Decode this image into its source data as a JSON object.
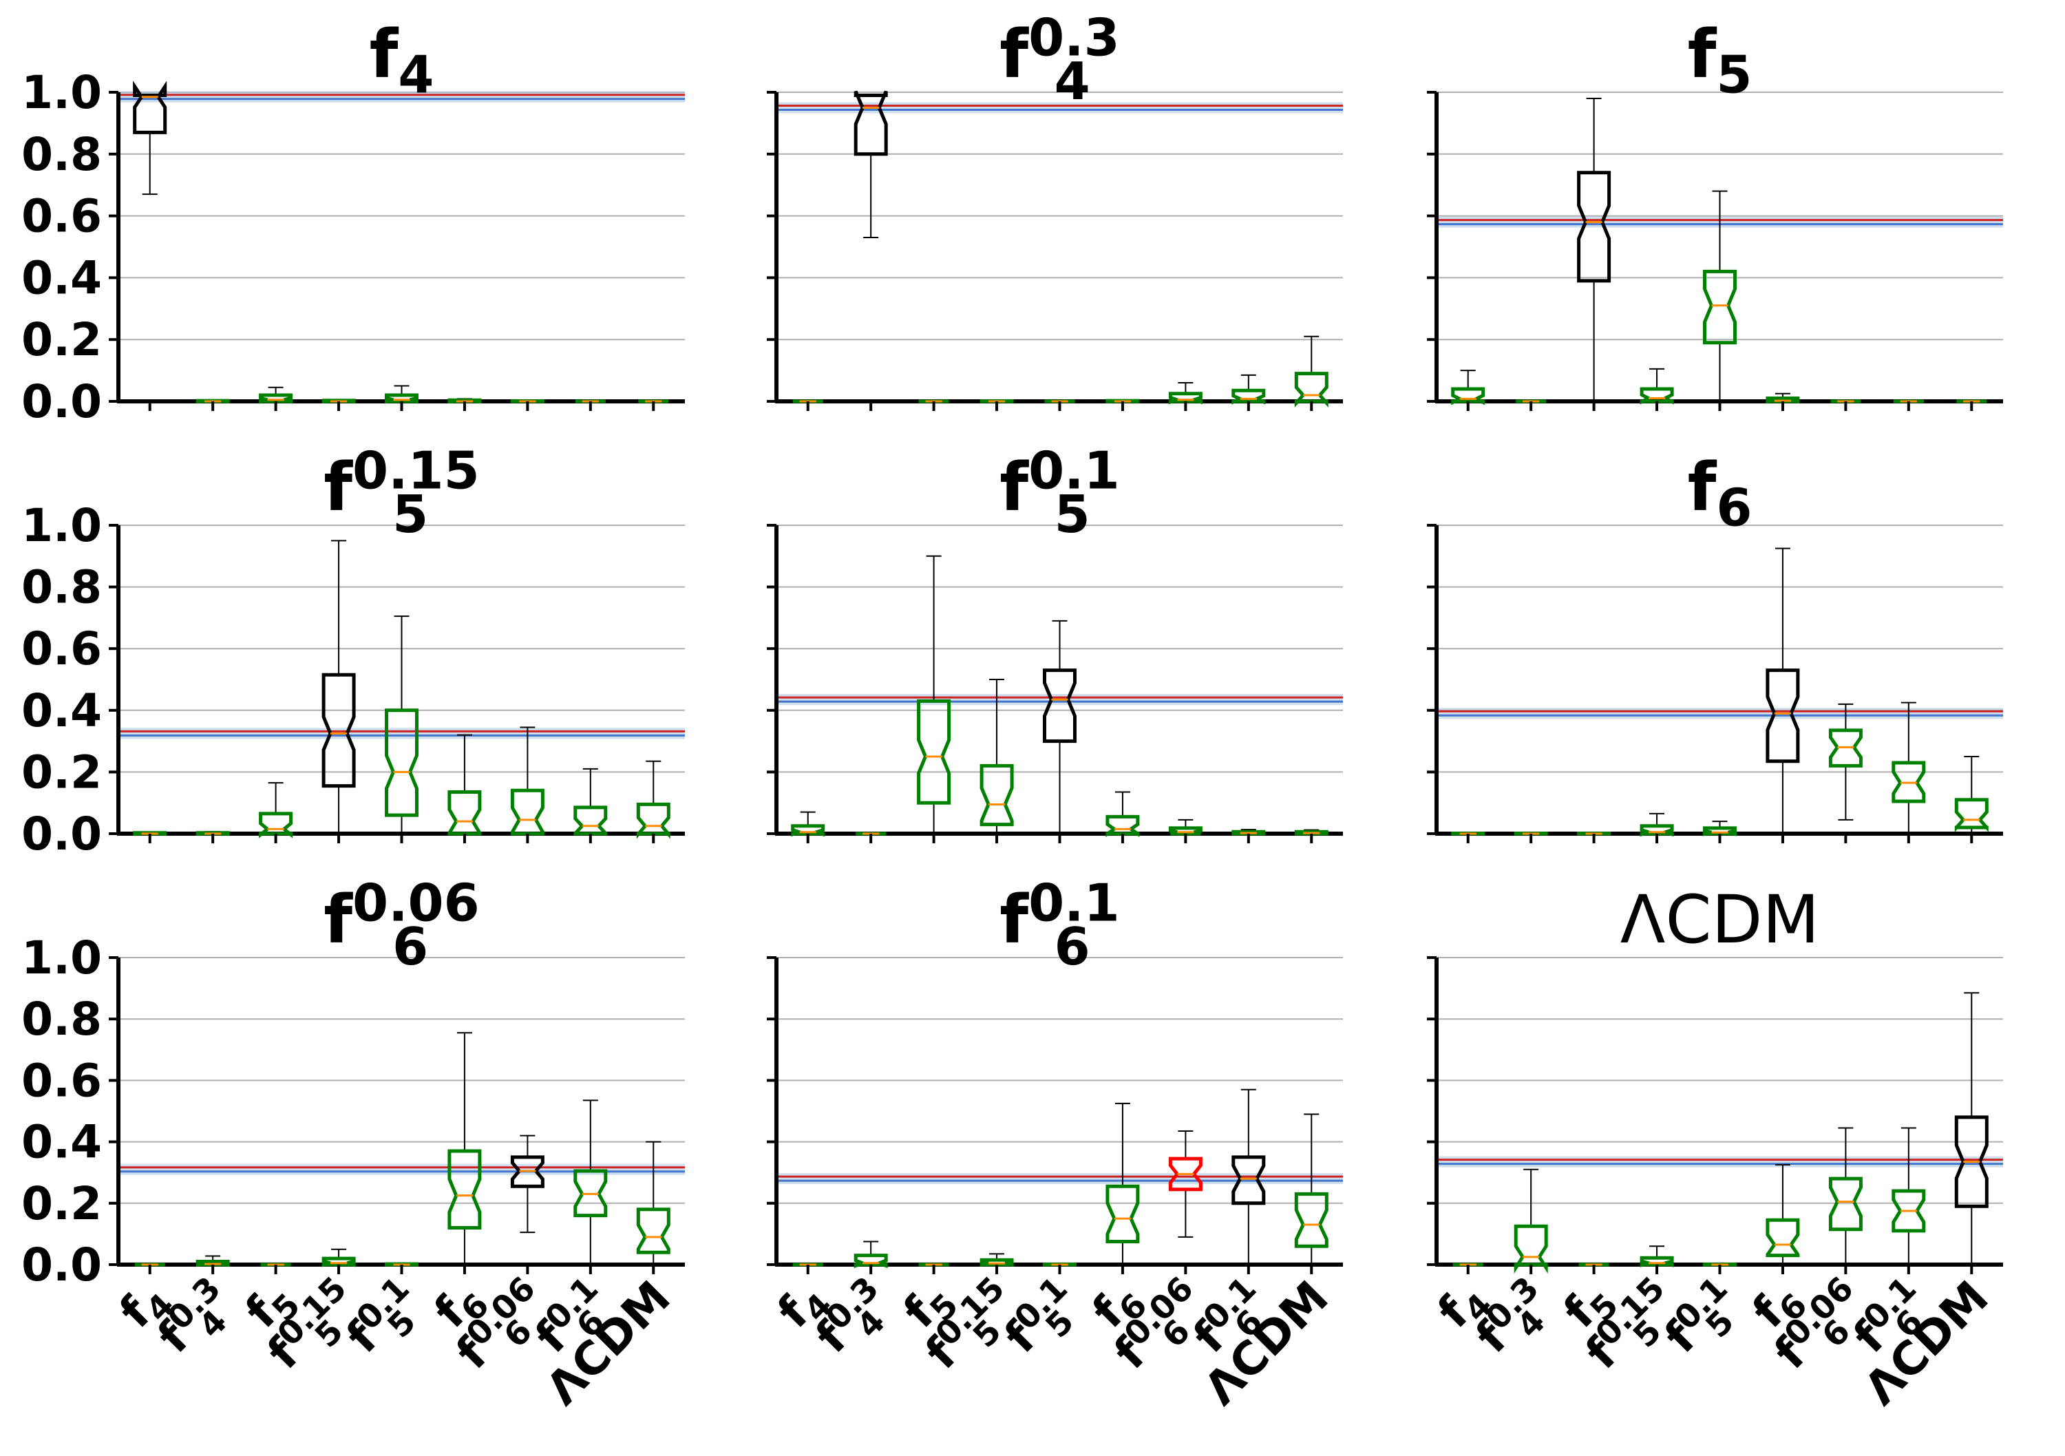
{
  "figure": {
    "description_ids": "3x3 grid of notched box plots",
    "categories": [
      "f_4",
      "f_4^0.3",
      "f_5",
      "f_5^0.15",
      "f_5^0.1",
      "f_6",
      "f_6^0.06",
      "f_6^0.1",
      "ΛCDM"
    ],
    "y_ticks": [
      "0.0",
      "0.2",
      "0.4",
      "0.6",
      "0.8",
      "1.0"
    ],
    "colors": {
      "true_model_box": "#000000",
      "other_box": "#008000",
      "highlight_box": "#ff0000",
      "median": "#ff8c00",
      "ref_line_red": "#cc2222",
      "ref_line_blue": "#4477cc",
      "ref_band": "#a9c4e0",
      "grid": "#b0b0b0"
    }
  },
  "chart_data": [
    {
      "type": "boxplot",
      "title": "f_4",
      "ylim": [
        0,
        1
      ],
      "reference_line": 0.985,
      "boxes": [
        {
          "category": "f_4",
          "q1": 0.87,
          "median": 0.985,
          "q3": 0.99,
          "whislo": 0.67,
          "whishi": 0.99,
          "color": "black"
        },
        {
          "category": "f_4^0.3",
          "q1": 0.0,
          "median": 0.0,
          "q3": 0.002,
          "whislo": 0.0,
          "whishi": 0.003,
          "color": "green"
        },
        {
          "category": "f_5",
          "q1": 0.0,
          "median": 0.005,
          "q3": 0.02,
          "whislo": 0.0,
          "whishi": 0.045,
          "color": "green"
        },
        {
          "category": "f_5^0.15",
          "q1": 0.0,
          "median": 0.0,
          "q3": 0.003,
          "whislo": 0.0,
          "whishi": 0.005,
          "color": "green"
        },
        {
          "category": "f_5^0.1",
          "q1": 0.0,
          "median": 0.005,
          "q3": 0.02,
          "whislo": 0.0,
          "whishi": 0.05,
          "color": "green"
        },
        {
          "category": "f_6",
          "q1": 0.0,
          "median": 0.0,
          "q3": 0.004,
          "whislo": 0.0,
          "whishi": 0.008,
          "color": "green"
        },
        {
          "category": "f_6^0.06",
          "q1": 0.0,
          "median": 0.0,
          "q3": 0.001,
          "whislo": 0.0,
          "whishi": 0.002,
          "color": "green"
        },
        {
          "category": "f_6^0.1",
          "q1": 0.0,
          "median": 0.0,
          "q3": 0.0,
          "whislo": 0.0,
          "whishi": 0.0,
          "color": "green"
        },
        {
          "category": "ΛCDM",
          "q1": 0.0,
          "median": 0.0,
          "q3": 0.0,
          "whislo": 0.0,
          "whishi": 0.0,
          "color": "green"
        }
      ]
    },
    {
      "type": "boxplot",
      "title": "f_4^0.3",
      "ylim": [
        0,
        1
      ],
      "reference_line": 0.95,
      "boxes": [
        {
          "category": "f_4",
          "q1": 0.0,
          "median": 0.0,
          "q3": 0.0,
          "whislo": 0.0,
          "whishi": 0.0,
          "color": "green"
        },
        {
          "category": "f_4^0.3",
          "q1": 0.8,
          "median": 0.95,
          "q3": 0.99,
          "whislo": 0.53,
          "whishi": 0.99,
          "color": "black"
        },
        {
          "category": "f_5",
          "q1": 0.0,
          "median": 0.0,
          "q3": 0.0,
          "whislo": 0.0,
          "whishi": 0.0,
          "color": "green"
        },
        {
          "category": "f_5^0.15",
          "q1": 0.0,
          "median": 0.0,
          "q3": 0.001,
          "whislo": 0.0,
          "whishi": 0.002,
          "color": "green"
        },
        {
          "category": "f_5^0.1",
          "q1": 0.0,
          "median": 0.0,
          "q3": 0.0,
          "whislo": 0.0,
          "whishi": 0.0,
          "color": "green"
        },
        {
          "category": "f_6",
          "q1": 0.0,
          "median": 0.0,
          "q3": 0.002,
          "whislo": 0.0,
          "whishi": 0.004,
          "color": "green"
        },
        {
          "category": "f_6^0.06",
          "q1": 0.0,
          "median": 0.005,
          "q3": 0.025,
          "whislo": 0.0,
          "whishi": 0.06,
          "color": "green"
        },
        {
          "category": "f_6^0.1",
          "q1": 0.0,
          "median": 0.008,
          "q3": 0.035,
          "whislo": 0.0,
          "whishi": 0.085,
          "color": "green"
        },
        {
          "category": "ΛCDM",
          "q1": 0.0,
          "median": 0.02,
          "q3": 0.09,
          "whislo": 0.0,
          "whishi": 0.21,
          "color": "green"
        }
      ]
    },
    {
      "type": "boxplot",
      "title": "f_5",
      "ylim": [
        0,
        1
      ],
      "reference_line": 0.58,
      "boxes": [
        {
          "category": "f_4",
          "q1": 0.0,
          "median": 0.008,
          "q3": 0.04,
          "whislo": 0.0,
          "whishi": 0.1,
          "color": "green"
        },
        {
          "category": "f_4^0.3",
          "q1": 0.0,
          "median": 0.0,
          "q3": 0.0,
          "whislo": 0.0,
          "whishi": 0.0,
          "color": "green"
        },
        {
          "category": "f_5",
          "q1": 0.39,
          "median": 0.58,
          "q3": 0.74,
          "whislo": 0.0,
          "whishi": 0.98,
          "color": "black"
        },
        {
          "category": "f_5^0.15",
          "q1": 0.0,
          "median": 0.01,
          "q3": 0.04,
          "whislo": 0.0,
          "whishi": 0.105,
          "color": "green"
        },
        {
          "category": "f_5^0.1",
          "q1": 0.19,
          "median": 0.31,
          "q3": 0.42,
          "whislo": 0.0,
          "whishi": 0.68,
          "color": "green"
        },
        {
          "category": "f_6",
          "q1": 0.0,
          "median": 0.002,
          "q3": 0.01,
          "whislo": 0.0,
          "whishi": 0.025,
          "color": "green"
        },
        {
          "category": "f_6^0.06",
          "q1": 0.0,
          "median": 0.0,
          "q3": 0.0,
          "whislo": 0.0,
          "whishi": 0.002,
          "color": "green"
        },
        {
          "category": "f_6^0.1",
          "q1": 0.0,
          "median": 0.0,
          "q3": 0.0,
          "whislo": 0.0,
          "whishi": 0.0,
          "color": "green"
        },
        {
          "category": "ΛCDM",
          "q1": 0.0,
          "median": 0.0,
          "q3": 0.0,
          "whislo": 0.0,
          "whishi": 0.0,
          "color": "green"
        }
      ]
    },
    {
      "type": "boxplot",
      "title": "f_5^0.15",
      "ylim": [
        0,
        1
      ],
      "reference_line": 0.325,
      "boxes": [
        {
          "category": "f_4",
          "q1": 0.0,
          "median": 0.0,
          "q3": 0.003,
          "whislo": 0.0,
          "whishi": 0.005,
          "color": "green"
        },
        {
          "category": "f_4^0.3",
          "q1": 0.0,
          "median": 0.0,
          "q3": 0.003,
          "whislo": 0.0,
          "whishi": 0.006,
          "color": "green"
        },
        {
          "category": "f_5",
          "q1": 0.0,
          "median": 0.015,
          "q3": 0.065,
          "whislo": 0.0,
          "whishi": 0.165,
          "color": "green"
        },
        {
          "category": "f_5^0.15",
          "q1": 0.155,
          "median": 0.325,
          "q3": 0.515,
          "whislo": 0.0,
          "whishi": 0.95,
          "color": "black"
        },
        {
          "category": "f_5^0.1",
          "q1": 0.06,
          "median": 0.2,
          "q3": 0.4,
          "whislo": 0.0,
          "whishi": 0.705,
          "color": "green"
        },
        {
          "category": "f_6",
          "q1": 0.0,
          "median": 0.04,
          "q3": 0.135,
          "whislo": 0.0,
          "whishi": 0.32,
          "color": "green"
        },
        {
          "category": "f_6^0.06",
          "q1": 0.0,
          "median": 0.045,
          "q3": 0.14,
          "whislo": 0.0,
          "whishi": 0.345,
          "color": "green"
        },
        {
          "category": "f_6^0.1",
          "q1": 0.0,
          "median": 0.025,
          "q3": 0.085,
          "whislo": 0.0,
          "whishi": 0.21,
          "color": "green"
        },
        {
          "category": "ΛCDM",
          "q1": 0.0,
          "median": 0.025,
          "q3": 0.095,
          "whislo": 0.0,
          "whishi": 0.235,
          "color": "green"
        }
      ]
    },
    {
      "type": "boxplot",
      "title": "f_5^0.1",
      "ylim": [
        0,
        1
      ],
      "reference_line": 0.435,
      "boxes": [
        {
          "category": "f_4",
          "q1": 0.0,
          "median": 0.005,
          "q3": 0.025,
          "whislo": 0.0,
          "whishi": 0.07,
          "color": "green"
        },
        {
          "category": "f_4^0.3",
          "q1": 0.0,
          "median": 0.0,
          "q3": 0.0,
          "whislo": 0.0,
          "whishi": 0.002,
          "color": "green"
        },
        {
          "category": "f_5",
          "q1": 0.1,
          "median": 0.25,
          "q3": 0.43,
          "whislo": 0.0,
          "whishi": 0.9,
          "color": "green"
        },
        {
          "category": "f_5^0.15",
          "q1": 0.03,
          "median": 0.095,
          "q3": 0.22,
          "whislo": 0.0,
          "whishi": 0.5,
          "color": "green"
        },
        {
          "category": "f_5^0.1",
          "q1": 0.3,
          "median": 0.435,
          "q3": 0.53,
          "whislo": 0.0,
          "whishi": 0.69,
          "color": "black"
        },
        {
          "category": "f_6",
          "q1": 0.0,
          "median": 0.015,
          "q3": 0.055,
          "whislo": 0.0,
          "whishi": 0.135,
          "color": "green"
        },
        {
          "category": "f_6^0.06",
          "q1": 0.0,
          "median": 0.005,
          "q3": 0.018,
          "whislo": 0.0,
          "whishi": 0.045,
          "color": "green"
        },
        {
          "category": "f_6^0.1",
          "q1": 0.0,
          "median": 0.002,
          "q3": 0.006,
          "whislo": 0.0,
          "whishi": 0.013,
          "color": "green"
        },
        {
          "category": "ΛCDM",
          "q1": 0.0,
          "median": 0.002,
          "q3": 0.006,
          "whislo": 0.0,
          "whishi": 0.012,
          "color": "green"
        }
      ]
    },
    {
      "type": "boxplot",
      "title": "f_6",
      "ylim": [
        0,
        1
      ],
      "reference_line": 0.39,
      "boxes": [
        {
          "category": "f_4",
          "q1": 0.0,
          "median": 0.0,
          "q3": 0.001,
          "whislo": 0.0,
          "whishi": 0.002,
          "color": "green"
        },
        {
          "category": "f_4^0.3",
          "q1": 0.0,
          "median": 0.0,
          "q3": 0.001,
          "whislo": 0.0,
          "whishi": 0.003,
          "color": "green"
        },
        {
          "category": "f_5",
          "q1": 0.0,
          "median": 0.0,
          "q3": 0.001,
          "whislo": 0.0,
          "whishi": 0.002,
          "color": "green"
        },
        {
          "category": "f_5^0.15",
          "q1": 0.0,
          "median": 0.005,
          "q3": 0.025,
          "whislo": 0.0,
          "whishi": 0.065,
          "color": "green"
        },
        {
          "category": "f_5^0.1",
          "q1": 0.0,
          "median": 0.004,
          "q3": 0.018,
          "whislo": 0.0,
          "whishi": 0.04,
          "color": "green"
        },
        {
          "category": "f_6",
          "q1": 0.235,
          "median": 0.39,
          "q3": 0.53,
          "whislo": 0.0,
          "whishi": 0.925,
          "color": "black"
        },
        {
          "category": "f_6^0.06",
          "q1": 0.22,
          "median": 0.28,
          "q3": 0.335,
          "whislo": 0.045,
          "whishi": 0.42,
          "color": "green"
        },
        {
          "category": "f_6^0.1",
          "q1": 0.105,
          "median": 0.165,
          "q3": 0.23,
          "whislo": 0.0,
          "whishi": 0.425,
          "color": "green"
        },
        {
          "category": "ΛCDM",
          "q1": 0.02,
          "median": 0.045,
          "q3": 0.11,
          "whislo": 0.0,
          "whishi": 0.25,
          "color": "green"
        }
      ]
    },
    {
      "type": "boxplot",
      "title": "f_6^0.06",
      "ylim": [
        0,
        1
      ],
      "reference_line": 0.31,
      "boxes": [
        {
          "category": "f_4",
          "q1": 0.0,
          "median": 0.0,
          "q3": 0.0,
          "whislo": 0.0,
          "whishi": 0.0,
          "color": "green"
        },
        {
          "category": "f_4^0.3",
          "q1": 0.0,
          "median": 0.002,
          "q3": 0.01,
          "whislo": 0.0,
          "whishi": 0.028,
          "color": "green"
        },
        {
          "category": "f_5",
          "q1": 0.0,
          "median": 0.0,
          "q3": 0.0,
          "whislo": 0.0,
          "whishi": 0.0,
          "color": "green"
        },
        {
          "category": "f_5^0.15",
          "q1": 0.0,
          "median": 0.005,
          "q3": 0.02,
          "whislo": 0.0,
          "whishi": 0.05,
          "color": "green"
        },
        {
          "category": "f_5^0.1",
          "q1": 0.0,
          "median": 0.0,
          "q3": 0.002,
          "whislo": 0.0,
          "whishi": 0.004,
          "color": "green"
        },
        {
          "category": "f_6",
          "q1": 0.12,
          "median": 0.225,
          "q3": 0.37,
          "whislo": 0.0,
          "whishi": 0.755,
          "color": "green"
        },
        {
          "category": "f_6^0.06",
          "q1": 0.255,
          "median": 0.305,
          "q3": 0.35,
          "whislo": 0.105,
          "whishi": 0.42,
          "color": "black"
        },
        {
          "category": "f_6^0.1",
          "q1": 0.16,
          "median": 0.23,
          "q3": 0.305,
          "whislo": 0.0,
          "whishi": 0.535,
          "color": "green"
        },
        {
          "category": "ΛCDM",
          "q1": 0.04,
          "median": 0.09,
          "q3": 0.18,
          "whislo": 0.0,
          "whishi": 0.4,
          "color": "green"
        }
      ]
    },
    {
      "type": "boxplot",
      "title": "f_6^0.1",
      "ylim": [
        0,
        1
      ],
      "reference_line": 0.28,
      "boxes": [
        {
          "category": "f_4",
          "q1": 0.0,
          "median": 0.0,
          "q3": 0.0,
          "whislo": 0.0,
          "whishi": 0.0,
          "color": "green"
        },
        {
          "category": "f_4^0.3",
          "q1": 0.0,
          "median": 0.005,
          "q3": 0.03,
          "whislo": 0.0,
          "whishi": 0.075,
          "color": "green"
        },
        {
          "category": "f_5",
          "q1": 0.0,
          "median": 0.0,
          "q3": 0.0,
          "whislo": 0.0,
          "whishi": 0.0,
          "color": "green"
        },
        {
          "category": "f_5^0.15",
          "q1": 0.0,
          "median": 0.004,
          "q3": 0.015,
          "whislo": 0.0,
          "whishi": 0.035,
          "color": "green"
        },
        {
          "category": "f_5^0.1",
          "q1": 0.0,
          "median": 0.0,
          "q3": 0.001,
          "whislo": 0.0,
          "whishi": 0.002,
          "color": "green"
        },
        {
          "category": "f_6",
          "q1": 0.075,
          "median": 0.15,
          "q3": 0.255,
          "whislo": 0.0,
          "whishi": 0.525,
          "color": "green"
        },
        {
          "category": "f_6^0.06",
          "q1": 0.245,
          "median": 0.295,
          "q3": 0.345,
          "whislo": 0.09,
          "whishi": 0.435,
          "color": "red"
        },
        {
          "category": "f_6^0.1",
          "q1": 0.2,
          "median": 0.28,
          "q3": 0.35,
          "whislo": 0.0,
          "whishi": 0.57,
          "color": "black"
        },
        {
          "category": "ΛCDM",
          "q1": 0.06,
          "median": 0.13,
          "q3": 0.23,
          "whislo": 0.0,
          "whishi": 0.49,
          "color": "green"
        }
      ]
    },
    {
      "type": "boxplot",
      "title": "ΛCDM",
      "ylim": [
        0,
        1
      ],
      "reference_line": 0.335,
      "boxes": [
        {
          "category": "f_4",
          "q1": 0.0,
          "median": 0.0,
          "q3": 0.0,
          "whislo": 0.0,
          "whishi": 0.0,
          "color": "green"
        },
        {
          "category": "f_4^0.3",
          "q1": 0.0,
          "median": 0.025,
          "q3": 0.125,
          "whislo": 0.0,
          "whishi": 0.31,
          "color": "green"
        },
        {
          "category": "f_5",
          "q1": 0.0,
          "median": 0.0,
          "q3": 0.0,
          "whislo": 0.0,
          "whishi": 0.0,
          "color": "green"
        },
        {
          "category": "f_5^0.15",
          "q1": 0.0,
          "median": 0.005,
          "q3": 0.022,
          "whislo": 0.0,
          "whishi": 0.06,
          "color": "green"
        },
        {
          "category": "f_5^0.1",
          "q1": 0.0,
          "median": 0.0,
          "q3": 0.001,
          "whislo": 0.0,
          "whishi": 0.002,
          "color": "green"
        },
        {
          "category": "f_6",
          "q1": 0.03,
          "median": 0.065,
          "q3": 0.145,
          "whislo": 0.0,
          "whishi": 0.325,
          "color": "green"
        },
        {
          "category": "f_6^0.06",
          "q1": 0.115,
          "median": 0.205,
          "q3": 0.28,
          "whislo": 0.0,
          "whishi": 0.445,
          "color": "green"
        },
        {
          "category": "f_6^0.1",
          "q1": 0.11,
          "median": 0.175,
          "q3": 0.24,
          "whislo": 0.0,
          "whishi": 0.445,
          "color": "green"
        },
        {
          "category": "ΛCDM",
          "q1": 0.19,
          "median": 0.335,
          "q3": 0.48,
          "whislo": 0.0,
          "whishi": 0.885,
          "color": "black"
        }
      ]
    }
  ]
}
